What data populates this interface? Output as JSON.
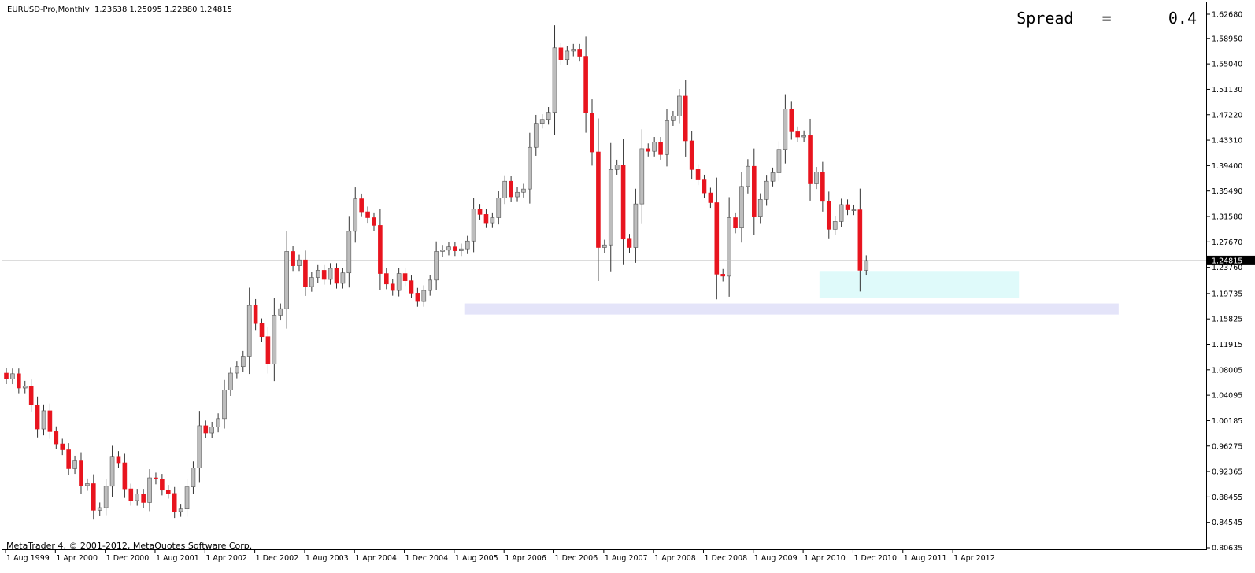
{
  "chart_header": {
    "symbol": "EURUSD-Pro,Monthly",
    "ohlc": "1.23638 1.25095 1.22880 1.24815"
  },
  "spread": {
    "label": "Spread",
    "equals": "=",
    "value": "0.4"
  },
  "copyright": "MetaTrader 4, © 2001-2012, MetaQuotes Software Corp.",
  "price_axis": {
    "ticks": [
      "1.62680",
      "1.58950",
      "1.55040",
      "1.51130",
      "1.47220",
      "1.43310",
      "1.39400",
      "1.35490",
      "1.31580",
      "1.27670",
      "1.23760",
      "1.19735",
      "1.15825",
      "1.11915",
      "1.08005",
      "1.04095",
      "1.00185",
      "0.96275",
      "0.92365",
      "0.88455",
      "0.84545",
      "0.80635"
    ],
    "current_price": "1.24815"
  },
  "time_axis": {
    "labels": [
      "1 Aug 1999",
      "1 Apr 2000",
      "1 Dec 2000",
      "1 Aug 2001",
      "1 Apr 2002",
      "1 Dec 2002",
      "1 Aug 2003",
      "1 Apr 2004",
      "1 Dec 2004",
      "1 Aug 2005",
      "1 Apr 2006",
      "1 Dec 2006",
      "1 Aug 2007",
      "1 Apr 2008",
      "1 Dec 2008",
      "1 Aug 2009",
      "1 Apr 2010",
      "1 Dec 2010",
      "1 Aug 2011",
      "1 Apr 2012"
    ]
  },
  "colors": {
    "bull_candle": "#bdbdbd",
    "bear_candle": "#e8141e",
    "wick": "#333333",
    "zone_cyan": "#dffafa",
    "zone_lavender": "#e4e4f9",
    "price_line": "#c8c8c8"
  },
  "chart_data": {
    "type": "candlestick",
    "title": "EURUSD-Pro,Monthly",
    "ylim": [
      0.80635,
      1.6268
    ],
    "first_bar": "1999-07",
    "interval": "monthly",
    "zones": [
      {
        "name": "support-zone-cyan",
        "from_bar": "2010-06",
        "to_bar": "2013-01",
        "low": 1.19,
        "high": 1.232
      },
      {
        "name": "support-zone-lavender",
        "from_bar": "2005-09",
        "to_bar": "2014-05",
        "low": 1.165,
        "high": 1.182
      }
    ],
    "close": [
      1.066,
      1.074,
      1.052,
      1.055,
      1.026,
      0.989,
      1.017,
      0.985,
      0.966,
      0.957,
      0.928,
      0.94,
      0.902,
      0.905,
      0.864,
      0.868,
      0.901,
      0.947,
      0.937,
      0.897,
      0.879,
      0.889,
      0.876,
      0.914,
      0.912,
      0.895,
      0.89,
      0.862,
      0.866,
      0.9,
      0.929,
      0.994,
      0.983,
      0.992,
      1.005,
      1.049,
      1.075,
      1.085,
      1.101,
      1.179,
      1.151,
      1.131,
      1.089,
      1.164,
      1.174,
      1.262,
      1.24,
      1.249,
      1.208,
      1.222,
      1.233,
      1.219,
      1.236,
      1.213,
      1.229,
      1.293,
      1.343,
      1.323,
      1.314,
      1.302,
      1.228,
      1.212,
      1.202,
      1.228,
      1.217,
      1.198,
      1.185,
      1.202,
      1.218,
      1.262,
      1.264,
      1.269,
      1.263,
      1.266,
      1.278,
      1.327,
      1.319,
      1.306,
      1.314,
      1.344,
      1.37,
      1.346,
      1.353,
      1.358,
      1.422,
      1.459,
      1.465,
      1.476,
      1.575,
      1.557,
      1.57,
      1.573,
      1.562,
      1.475,
      1.415,
      1.268,
      1.272,
      1.388,
      1.395,
      1.281,
      1.268,
      1.335,
      1.42,
      1.416,
      1.43,
      1.411,
      1.463,
      1.47,
      1.501,
      1.432,
      1.388,
      1.372,
      1.352,
      1.337,
      1.227,
      1.224,
      1.314,
      1.298,
      1.362,
      1.393,
      1.315,
      1.342,
      1.37,
      1.383,
      1.419,
      1.481,
      1.446,
      1.438,
      1.44,
      1.366,
      1.384,
      1.339,
      1.296,
      1.308,
      1.334,
      1.326,
      1.326,
      1.233,
      1.248
    ]
  }
}
